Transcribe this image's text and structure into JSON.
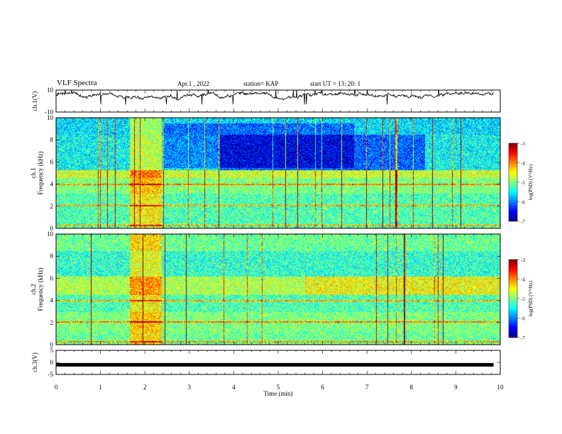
{
  "header": {
    "title": "VLF Spectra",
    "date": "Apr.1 , 2022",
    "station": "station= KAP",
    "start_ut": "start UT = 13: 20: 1"
  },
  "chart_data": [
    {
      "type": "line",
      "ylabel": "ch.1(V)",
      "ylim": [
        -10,
        10
      ],
      "yticks": [
        "10",
        "-10"
      ],
      "xlim": [
        0,
        10
      ],
      "description_only": false
    },
    {
      "type": "heatmap",
      "ylabel": [
        "ch.1",
        "Frequency (kHz)"
      ],
      "ylim": [
        0,
        10
      ],
      "yticks": [
        "0",
        "2",
        "4",
        "6",
        "8",
        "10"
      ],
      "xlim": [
        0,
        10
      ],
      "colorbar": {
        "label": "log(PSD) (V²/Hz)",
        "range": [
          -7,
          -3
        ],
        "ticks": [
          "-3",
          "-4",
          "-5",
          "-6",
          "-7"
        ]
      }
    },
    {
      "type": "heatmap",
      "ylabel": [
        "ch.2",
        "Frequency (kHz)"
      ],
      "ylim": [
        0,
        10
      ],
      "yticks": [
        "0",
        "2",
        "4",
        "6",
        "8",
        "10"
      ],
      "xlim": [
        0,
        10
      ],
      "colorbar": {
        "label": "log(PSD) (V²/Hz)",
        "range": [
          -7,
          -3
        ],
        "ticks": [
          "-3",
          "-4",
          "-5",
          "-6",
          "-7"
        ]
      }
    },
    {
      "type": "line",
      "ylabel": "ch.3(V)",
      "ylim": [
        -5,
        5
      ],
      "yticks": [
        "5",
        "0",
        "-5"
      ],
      "xlim": [
        0,
        10
      ],
      "xticks": [
        "0",
        "1",
        "2",
        "3",
        "4",
        "5",
        "6",
        "7",
        "8",
        "9",
        "10"
      ],
      "xlabel": "Time (min)",
      "constant_value": -1
    }
  ],
  "colors": {
    "colormap": [
      "#000080",
      "#0000ff",
      "#0080ff",
      "#00ffff",
      "#80ff80",
      "#ffff00",
      "#ff8000",
      "#ff0000",
      "#800000"
    ]
  }
}
